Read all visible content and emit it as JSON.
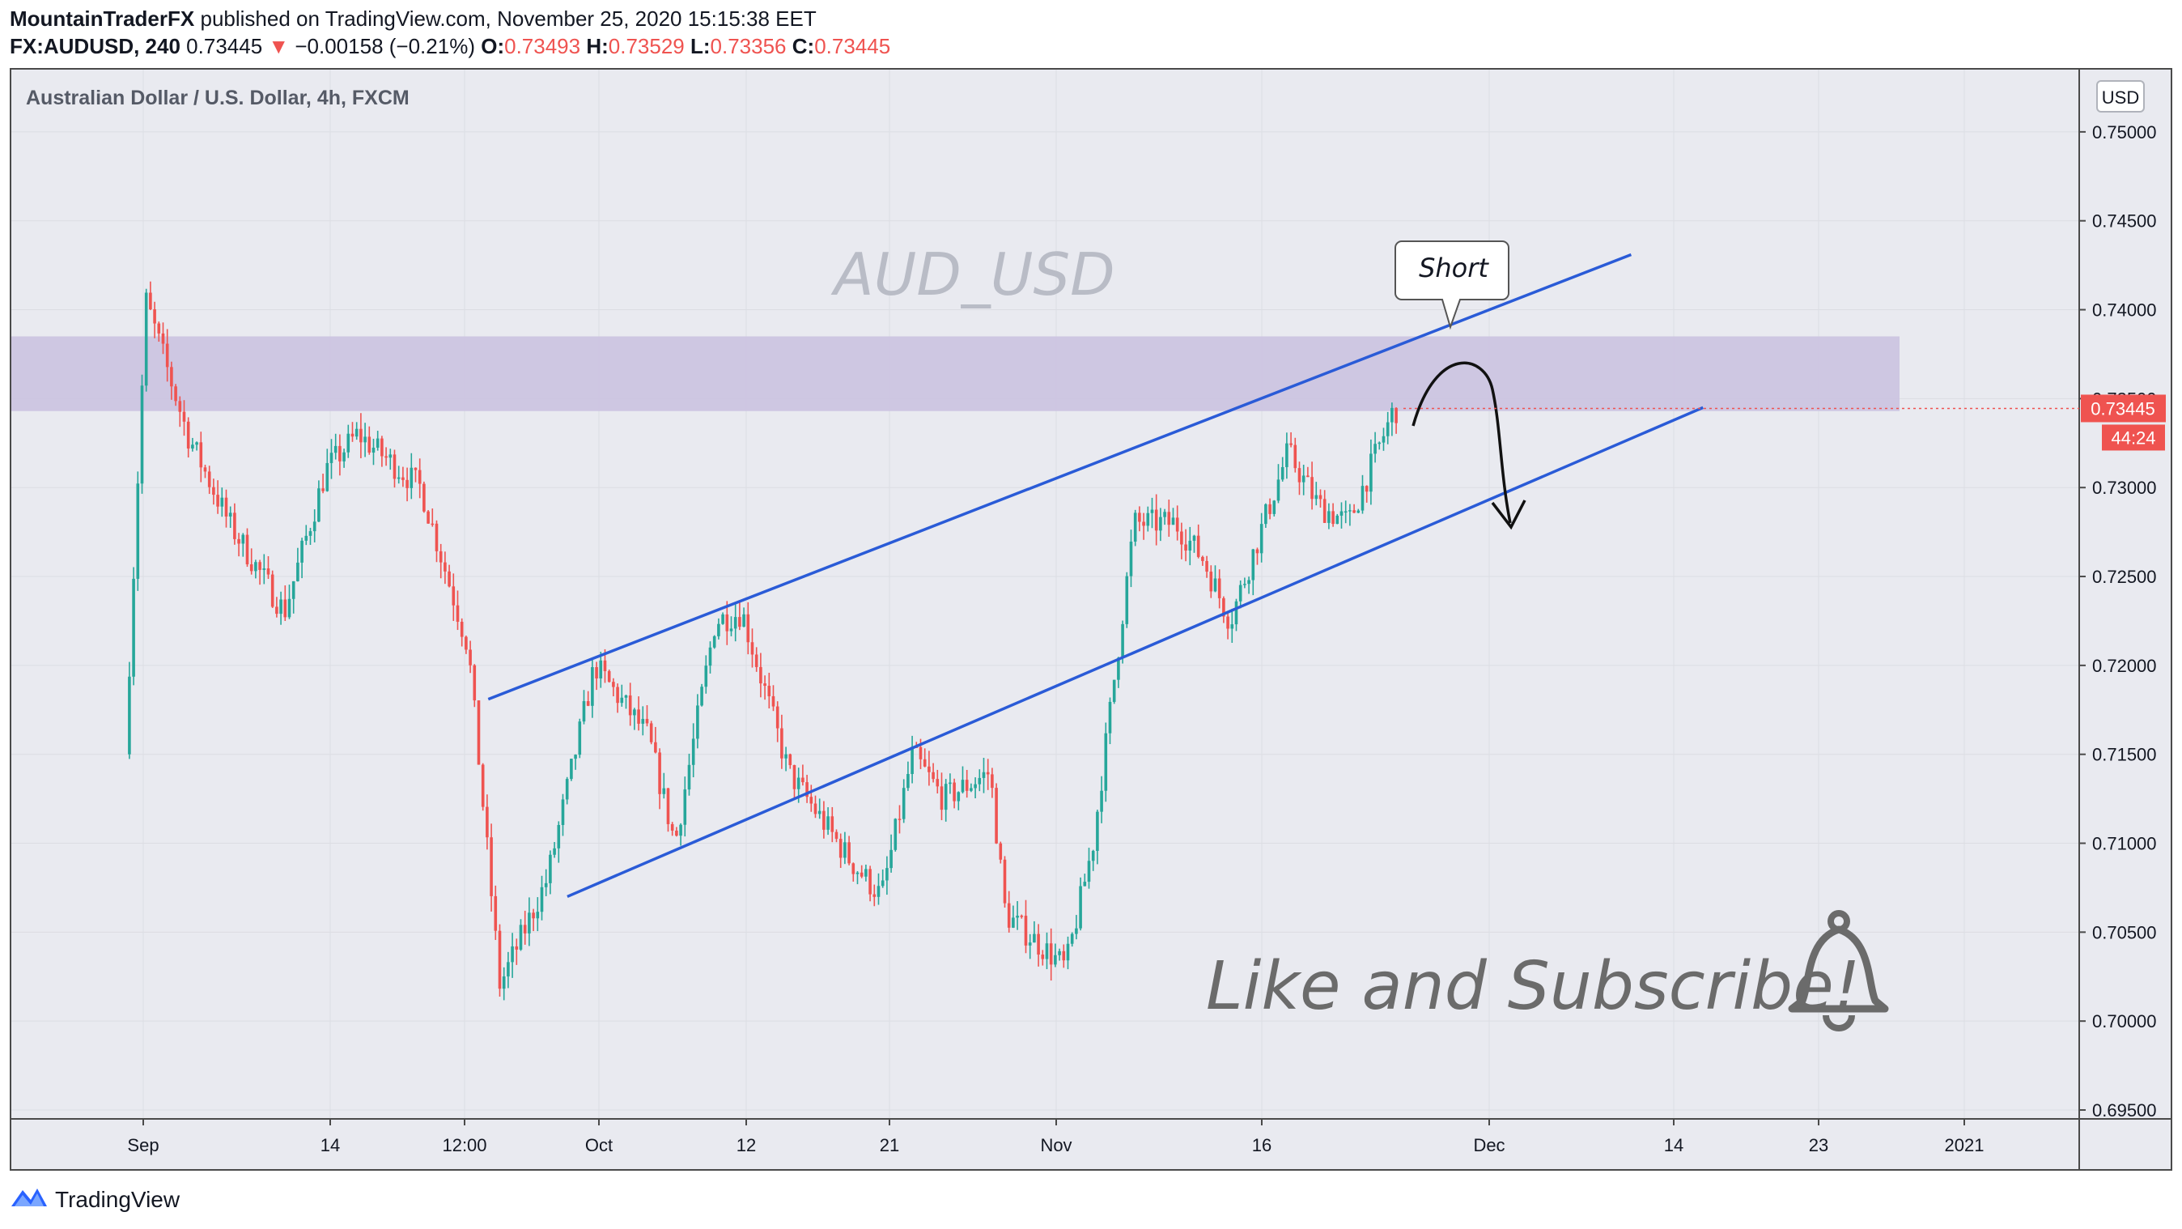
{
  "header": {
    "author": "MountainTraderFX",
    "published_text": "published on TradingView.com, November 25, 2020 15:15:38 EET",
    "symbol": "FX:AUDUSD, 240",
    "last": "0.73445",
    "down_arrow": "▼",
    "change": "−0.00158 (−0.21%)",
    "o_label": "O:",
    "o_value": "0.73493",
    "h_label": "H:",
    "h_value": "0.73529",
    "l_label": "L:",
    "l_value": "0.73356",
    "c_label": "C:",
    "c_value": "0.73445"
  },
  "footer": {
    "brand": "TradingView"
  },
  "chart_data": {
    "type": "candlestick",
    "title": "Australian Dollar / U.S. Dollar, 4h, FXCM",
    "watermark": "AUD_USD",
    "currency_label": "USD",
    "ylim": [
      0.6945,
      0.7535
    ],
    "y_ticks": [
      "0.75000",
      "0.74500",
      "0.74000",
      "0.73500",
      "0.73000",
      "0.72500",
      "0.72000",
      "0.71500",
      "0.71000",
      "0.70500",
      "0.70000",
      "0.69500"
    ],
    "x_ticks": [
      "Sep",
      "14",
      "12:00",
      "Oct",
      "12",
      "21",
      "Nov",
      "16",
      "Dec",
      "14",
      "23",
      "2021"
    ],
    "last_price": "0.73445",
    "countdown": "44:24",
    "colors": {
      "up": "#26a69a",
      "down": "#ef5350",
      "channel": "#2a5bd7",
      "zone": "#cbc3e0",
      "price_tag": "#ef5350"
    },
    "resistance_zone": [
      0.7343,
      0.7385
    ],
    "channel": {
      "upper": [
        [
          "Sep 24",
          0.7181
        ],
        [
          "Oct 12",
          0.724
        ],
        [
          "Nov 10",
          0.734
        ],
        [
          "Dec 11",
          0.7431
        ]
      ],
      "lower": [
        [
          "Sep 29",
          0.707
        ],
        [
          "Oct 7",
          0.71
        ],
        [
          "Nov 14",
          0.7224
        ],
        [
          "Dec 16",
          0.7345
        ]
      ]
    },
    "annotations": [
      {
        "type": "callout",
        "text": "Short"
      },
      {
        "type": "arrow",
        "text": ""
      },
      {
        "type": "text",
        "text": "Like and Subscribe!"
      }
    ],
    "price_path": [
      [
        "start",
        0.715
      ],
      [
        "Sep 1",
        0.7405
      ],
      [
        "Sep 4",
        0.733
      ],
      [
        "Sep 7",
        0.728
      ],
      [
        "Sep 11",
        0.723
      ],
      [
        "Sep 14",
        0.731
      ],
      [
        "Sep 16",
        0.733
      ],
      [
        "Sep 20",
        0.73
      ],
      [
        "Sep 23",
        0.721
      ],
      [
        "Sep 25",
        0.702
      ],
      [
        "Sep 28",
        0.708
      ],
      [
        "Oct 1",
        0.72
      ],
      [
        "Oct 5",
        0.716
      ],
      [
        "Oct 7",
        0.71
      ],
      [
        "Oct 10",
        0.7225
      ],
      [
        "Oct 12",
        0.723
      ],
      [
        "Oct 15",
        0.714
      ],
      [
        "Oct 19",
        0.709
      ],
      [
        "Oct 21",
        0.707
      ],
      [
        "Oct 23",
        0.715
      ],
      [
        "Oct 25",
        0.7125
      ],
      [
        "Oct 28",
        0.714
      ],
      [
        "Oct 29",
        0.706
      ],
      [
        "Nov 2",
        0.703
      ],
      [
        "Nov 4",
        0.71
      ],
      [
        "Nov 7",
        0.728
      ],
      [
        "Nov 10",
        0.728
      ],
      [
        "Nov 12",
        0.726
      ],
      [
        "Nov 14",
        0.7225
      ],
      [
        "Nov 18",
        0.732
      ],
      [
        "Nov 20",
        0.729
      ],
      [
        "Nov 22",
        0.728
      ],
      [
        "Nov 25",
        0.7344
      ]
    ]
  }
}
